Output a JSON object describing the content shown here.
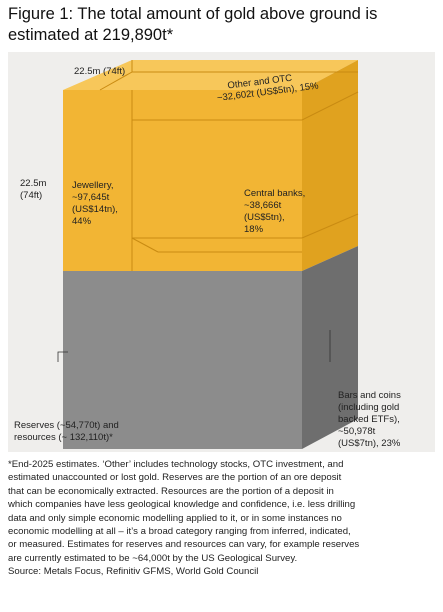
{
  "title": "Figure 1: The total amount of gold above ground is estimated at 219,890t*",
  "diagram": {
    "top_dimension": "22.5m (74ft)",
    "side_dimension_line1": "22.5m",
    "side_dimension_line2": "(74ft)",
    "jewellery": [
      "Jewellery,",
      "~97,645t",
      "(US$14tn),",
      "44%"
    ],
    "other_otc": [
      "Other and OTC",
      "~32,602t (US$5tn), 15%"
    ],
    "central_banks": [
      "Central banks,",
      "~38,666t",
      "(US$5tn),",
      "18%"
    ],
    "bars_coins": [
      "Bars and coins",
      "(including gold",
      "backed ETFs),",
      "~50,978t",
      "(US$7tn), 23%"
    ],
    "reserves": [
      "Reserves (~54,770t) and",
      "resources (~ 132,110t)*"
    ]
  },
  "colors": {
    "gold_front": "#f2b534",
    "gold_side": "#e0a21f",
    "gold_top": "#f7c75a",
    "grey_front": "#8c8c8c",
    "grey_side": "#6e6e6e",
    "background_panel": "#efeeec"
  },
  "footnote": [
    "*End-2025 estimates. ‘Other’ includes technology stocks, OTC investment, and",
    "estimated unaccounted or lost gold. Reserves are the portion of an ore deposit",
    "that can be economically extracted. Resources are the portion of a deposit in",
    "which companies have less geological knowledge and confidence, i.e. less drilling",
    "data and only simple economic modelling applied to it, or in some instances no",
    "economic modelling at all – it’s a broad category ranging from inferred, indicated,",
    "or measured. Estimates for reserves and resources can vary, for example reserves",
    "are currently estimated to be ~64,000t by the US Geological Survey."
  ],
  "source": "Source: Metals Focus, Refinitiv GFMS, World Gold Council"
}
